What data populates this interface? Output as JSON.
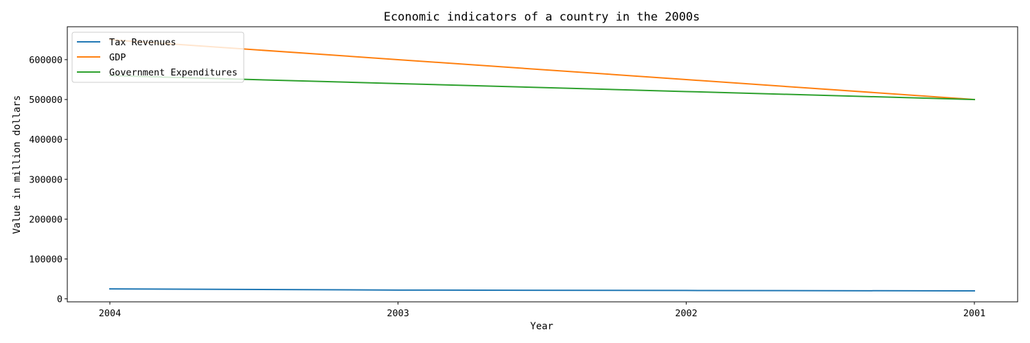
{
  "chart_data": {
    "type": "line",
    "title": "Economic indicators of a country in the 2000s",
    "xlabel": "Year",
    "ylabel": "Value in million dollars",
    "categories": [
      "2004",
      "2003",
      "2002",
      "2001"
    ],
    "series": [
      {
        "name": "Tax Revenues",
        "values": [
          25000,
          22000,
          21000,
          20000
        ],
        "color": "#1f77b4"
      },
      {
        "name": "GDP",
        "values": [
          650000,
          600000,
          550000,
          500000
        ],
        "color": "#ff7f0e"
      },
      {
        "name": "Government Expenditures",
        "values": [
          560000,
          540000,
          520000,
          500000
        ],
        "color": "#2ca02c"
      }
    ],
    "ylim": [
      -7500,
      682500
    ],
    "yticks": [
      0,
      100000,
      200000,
      300000,
      400000,
      500000,
      600000
    ],
    "grid": false,
    "legend_position": "top-left"
  }
}
